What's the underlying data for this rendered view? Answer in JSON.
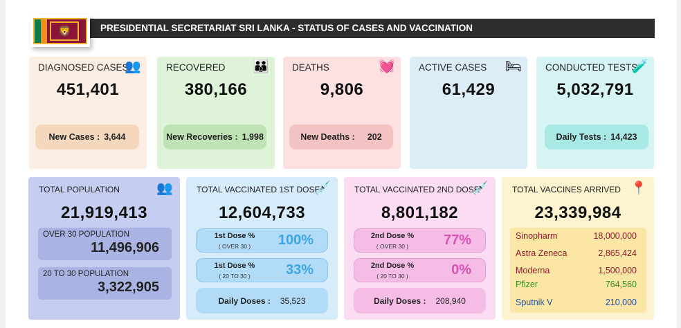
{
  "header": {
    "title": "PRESIDENTIAL SECRETARIAT SRI LANKA - STATUS OF CASES AND VACCINATION"
  },
  "flag": {
    "lion": "🦁"
  },
  "cards": [
    {
      "label": "DIAGNOSED CASES",
      "icon": "people-group-icon",
      "glyph": "👥",
      "value": "451,401",
      "sub_label": "New Cases :",
      "sub_value": "3,644"
    },
    {
      "label": "RECOVERED",
      "icon": "recovered-people-icon",
      "glyph": "👪",
      "value": "380,166",
      "sub_label": "New Recoveries :",
      "sub_value": "1,998"
    },
    {
      "label": "DEATHS",
      "icon": "heartbeat-icon",
      "glyph": "💓",
      "value": "9,806",
      "sub_label": "New Deaths :",
      "sub_value": "202"
    },
    {
      "label": "ACTIVE CASES",
      "icon": "hospital-bed-icon",
      "glyph": "🛏",
      "value": "61,429"
    },
    {
      "label": "CONDUCTED TESTS",
      "icon": "test-tubes-icon",
      "glyph": "🧪",
      "value": "5,032,791",
      "sub_label": "Daily Tests :",
      "sub_value": "14,423"
    }
  ],
  "population": {
    "label": "TOTAL POPULATION",
    "icon": "population-icon",
    "glyph": "👥",
    "value": "21,919,413",
    "over30_label": "OVER 30 POPULATION",
    "over30_value": "11,496,906",
    "age20_30_label": "20 TO 30 POPULATION",
    "age20_30_value": "3,322,905"
  },
  "dose1": {
    "label": "TOTAL VACCINATED 1ST DOSE",
    "icon": "syringe-icon",
    "glyph": "💉",
    "value": "12,604,733",
    "row1_label": "1st Dose %",
    "row1_sub": "( OVER 30 )",
    "row1_value": "100%",
    "row2_label": "1st Dose %",
    "row2_sub": "( 20 TO 30 )",
    "row2_value": "33%",
    "daily_label": "Daily Doses :",
    "daily_value": "35,523"
  },
  "dose2": {
    "label": "TOTAL VACCINATED 2ND DOSE",
    "icon": "syringe-icon",
    "glyph": "💉",
    "value": "8,801,182",
    "row1_label": "2nd Dose %",
    "row1_sub": "( OVER 30 )",
    "row1_value": "77%",
    "row2_label": "2nd Dose %",
    "row2_sub": "( 20 TO 30 )",
    "row2_value": "0%",
    "daily_label": "Daily Doses :",
    "daily_value": "208,940"
  },
  "arrived": {
    "label": "TOTAL VACCINES ARRIVED",
    "icon": "location-pin-icon",
    "glyph": "📍",
    "value": "23,339,984",
    "vaccines": [
      {
        "name": "Sinopharm",
        "value": "18,000,000",
        "color": "#8b1a2b"
      },
      {
        "name": "Astra Zeneca",
        "value": "2,865,424",
        "color": "#8b1a2b"
      },
      {
        "name": "Moderna",
        "value": "1,500,000",
        "color": "#8b1a2b"
      },
      {
        "name": "Pfizer",
        "value": "764,560",
        "color": "#2f8f1f"
      },
      {
        "name": "Sputnik V",
        "value": "210,000",
        "color": "#1f4f9f"
      }
    ]
  }
}
